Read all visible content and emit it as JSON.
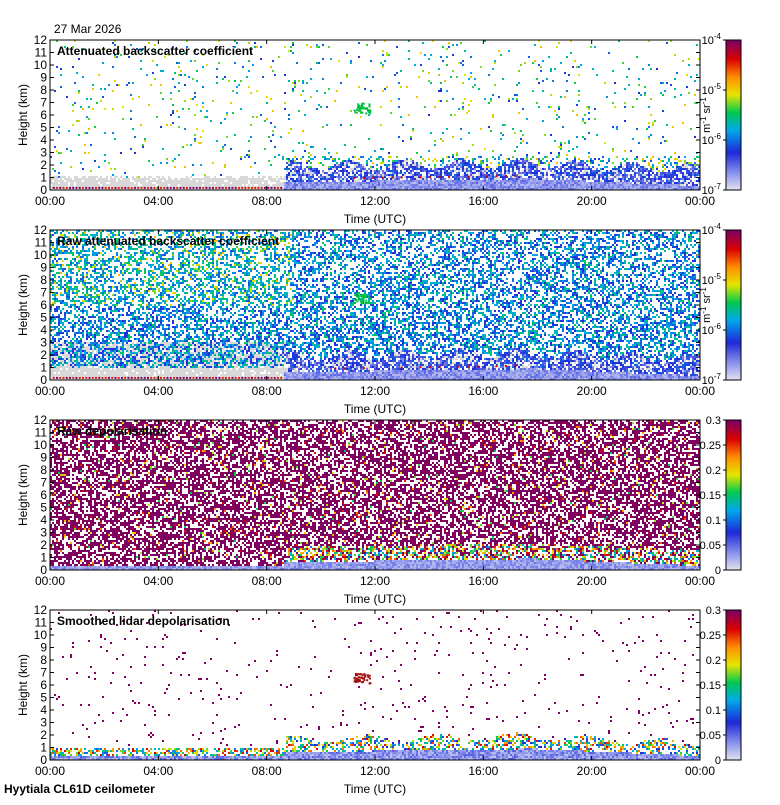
{
  "header": {
    "date": "27 Mar 2026"
  },
  "footer": {
    "site_instrument": "Hyytiala CL61D ceilometer"
  },
  "chart_data": [
    {
      "type": "heatmap",
      "title": "Attenuated backscatter coefficient",
      "xlabel": "Time (UTC)",
      "ylabel": "Height (km)",
      "x_ticks": [
        "00:00",
        "04:00",
        "08:00",
        "12:00",
        "16:00",
        "20:00",
        "00:00"
      ],
      "xlim": [
        0,
        24
      ],
      "ylim": [
        0,
        12
      ],
      "y_ticks": [
        0,
        1,
        2,
        3,
        4,
        5,
        6,
        7,
        8,
        9,
        10,
        11,
        12
      ],
      "colorbar": {
        "scale": "log",
        "range": [
          1e-07,
          0.0001
        ],
        "ticks": [
          "10-7",
          "10-6",
          "10-5",
          "10-4"
        ],
        "unit": "m-1 sr-1",
        "colormap": "chiljet"
      },
      "variant": "attn",
      "colors": {
        "noise": "#d8d8d8"
      }
    },
    {
      "type": "heatmap",
      "title": "Raw attenuated backscatter coefficient",
      "xlabel": "Time (UTC)",
      "ylabel": "Height (km)",
      "x_ticks": [
        "00:00",
        "04:00",
        "08:00",
        "12:00",
        "16:00",
        "20:00",
        "00:00"
      ],
      "xlim": [
        0,
        24
      ],
      "ylim": [
        0,
        12
      ],
      "y_ticks": [
        0,
        1,
        2,
        3,
        4,
        5,
        6,
        7,
        8,
        9,
        10,
        11,
        12
      ],
      "colorbar": {
        "scale": "log",
        "range": [
          1e-07,
          0.0001
        ],
        "ticks": [
          "10-7",
          "10-6",
          "10-5",
          "10-4"
        ],
        "unit": "m-1 sr-1",
        "colormap": "chiljet"
      },
      "variant": "raw_attn",
      "colors": {
        "noise": "#d8d8d8"
      }
    },
    {
      "type": "heatmap",
      "title": "Raw depolarisation",
      "xlabel": "Time (UTC)",
      "ylabel": "Height (km)",
      "x_ticks": [
        "00:00",
        "04:00",
        "08:00",
        "12:00",
        "16:00",
        "20:00",
        "00:00"
      ],
      "xlim": [
        0,
        24
      ],
      "ylim": [
        0,
        12
      ],
      "y_ticks": [
        0,
        1,
        2,
        3,
        4,
        5,
        6,
        7,
        8,
        9,
        10,
        11,
        12
      ],
      "colorbar": {
        "scale": "linear",
        "range": [
          0,
          0.3
        ],
        "ticks": [
          "0",
          "0.05",
          "0.1",
          "0.15",
          "0.2",
          "0.25",
          "0.3"
        ],
        "unit": "",
        "colormap": "chiljet"
      },
      "variant": "raw_depol",
      "colors": {
        "dominant": "#800060"
      }
    },
    {
      "type": "heatmap",
      "title": "Smoothed lidar depolarisation",
      "xlabel": "Time (UTC)",
      "ylabel": "Height (km)",
      "x_ticks": [
        "00:00",
        "04:00",
        "08:00",
        "12:00",
        "16:00",
        "20:00",
        "00:00"
      ],
      "xlim": [
        0,
        24
      ],
      "ylim": [
        0,
        12
      ],
      "y_ticks": [
        0,
        1,
        2,
        3,
        4,
        5,
        6,
        7,
        8,
        9,
        10,
        11,
        12
      ],
      "colorbar": {
        "scale": "linear",
        "range": [
          0,
          0.3
        ],
        "ticks": [
          "0",
          "0.05",
          "0.1",
          "0.15",
          "0.2",
          "0.25",
          "0.3"
        ],
        "unit": "",
        "colormap": "chiljet"
      },
      "variant": "smooth_depol",
      "colors": {
        "dominant": "#800060"
      }
    }
  ]
}
